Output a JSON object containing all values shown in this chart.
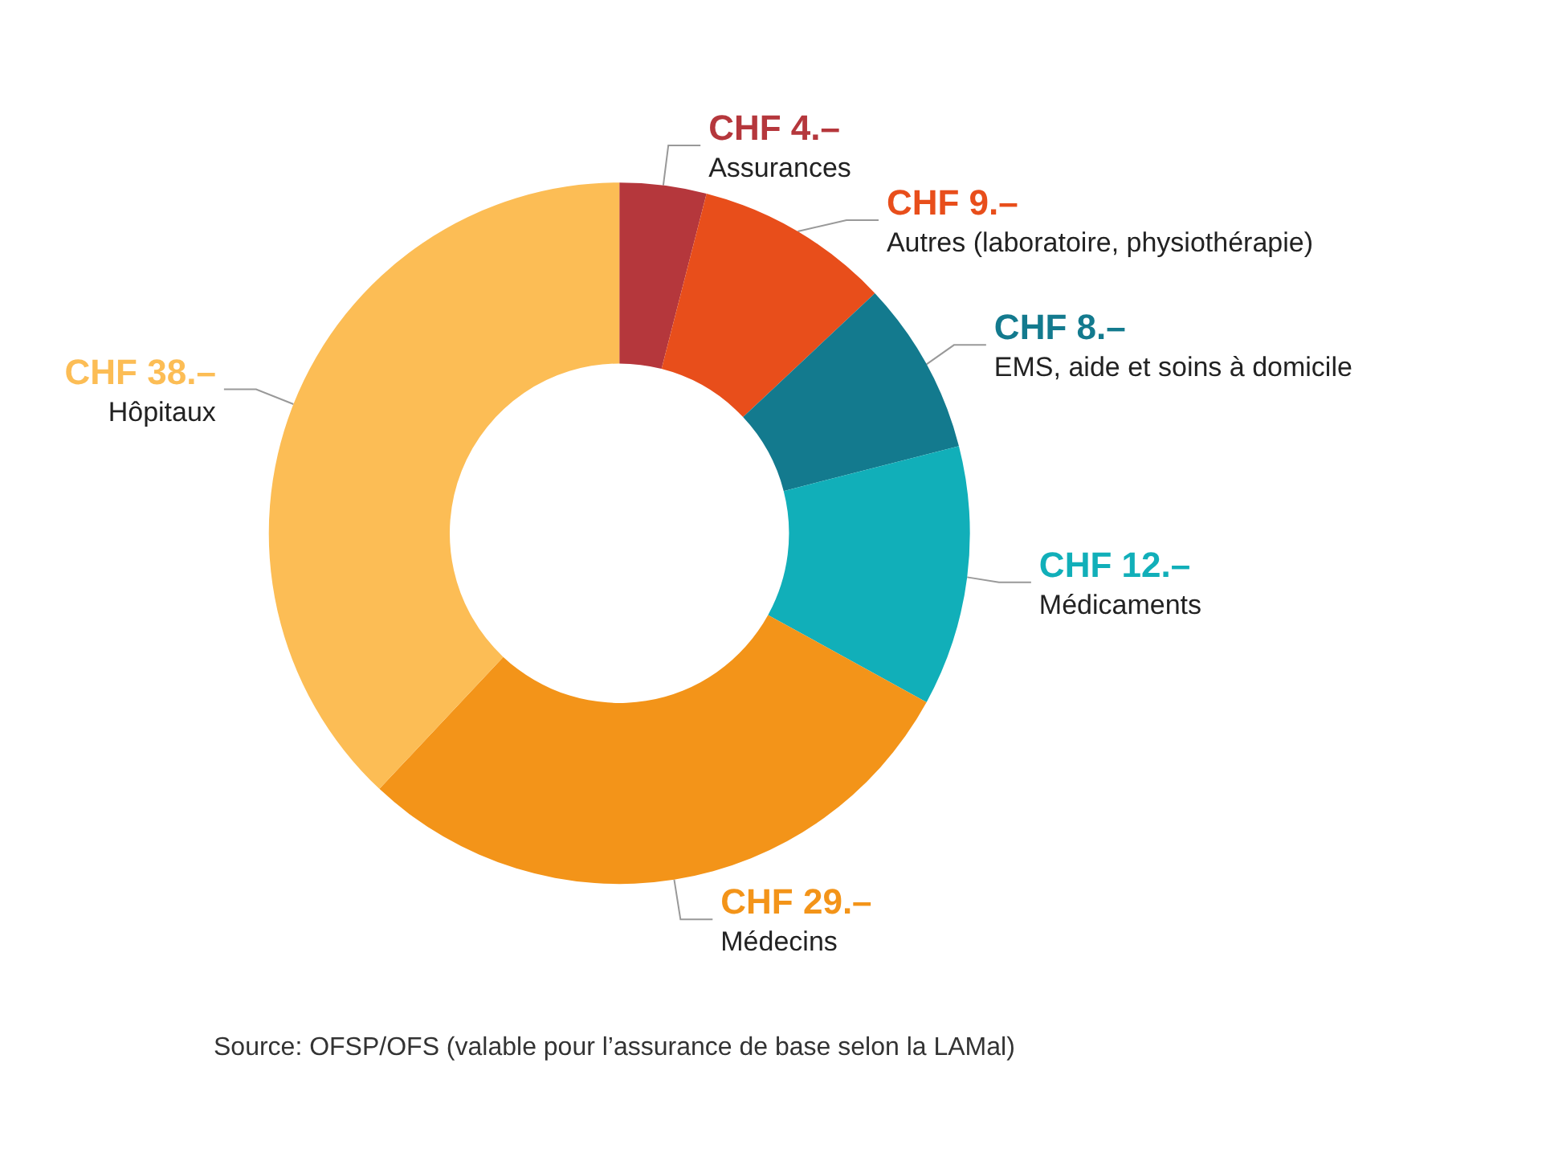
{
  "chart_data": {
    "type": "donut",
    "categories": [
      "Assurances",
      "Autres (laboratoire, physiothérapie)",
      "EMS, aide et soins à domicile",
      "Médicaments",
      "Médecins",
      "Hôpitaux"
    ],
    "values": [
      4,
      9,
      8,
      12,
      29,
      38
    ],
    "colors": [
      "#b5373c",
      "#e84e1b",
      "#137a8e",
      "#11afb9",
      "#f39419",
      "#fcbd55"
    ],
    "value_labels": [
      "CHF 4.–",
      "CHF 9.–",
      "CHF 8.–",
      "CHF 12.–",
      "CHF 29.–",
      "CHF 38.–"
    ],
    "annotations": [
      "Source: OFSP/OFS (valable pour l’assurance de base selon la LAMal)"
    ]
  }
}
